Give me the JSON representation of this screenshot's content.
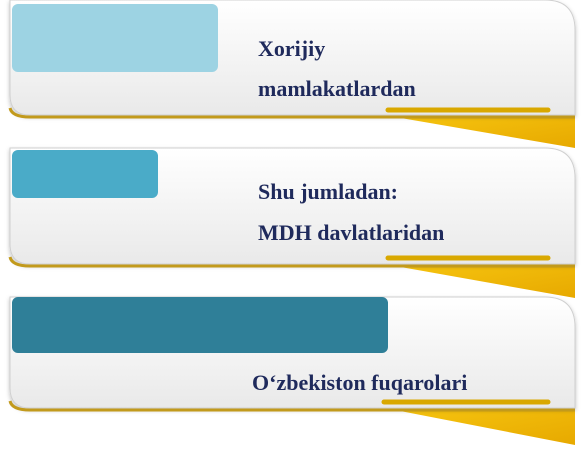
{
  "items": [
    {
      "lines": [
        "Xorijiy",
        "mamlakatlardan"
      ]
    },
    {
      "lines": [
        "Shu jumladan:",
        "MDH davlatlaridan"
      ]
    },
    {
      "lines": [
        "O‘zbekiston fuqarolari"
      ]
    }
  ]
}
